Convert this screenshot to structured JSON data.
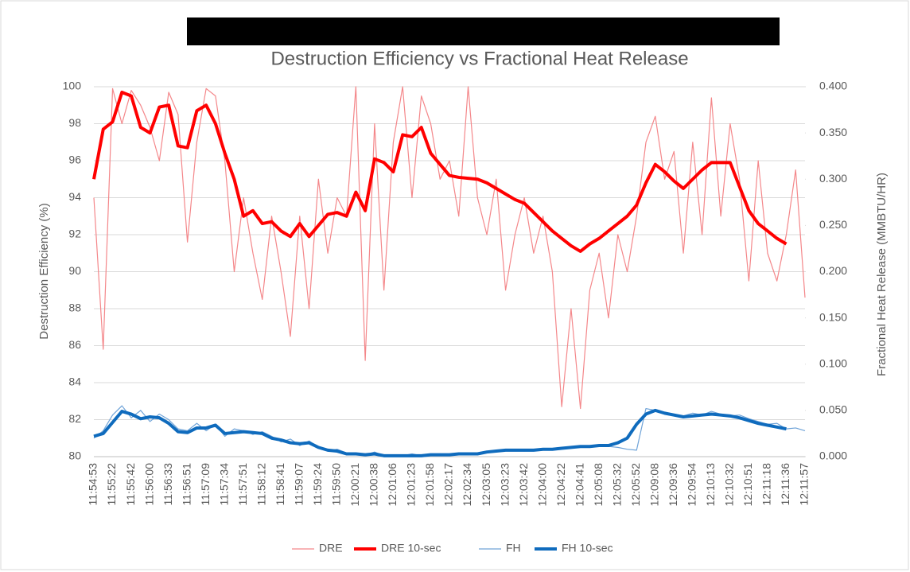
{
  "chart_data": {
    "type": "line",
    "title": "Destruction Efficiency vs Fractional Heat Release",
    "y_label": "Destruction Efficiency (%)",
    "y2_label": "Fractional Heat Release (MMBTU/HR)",
    "categories": [
      "11:54:53",
      null,
      "11:55:22",
      null,
      "11:55:42",
      null,
      "11:56:00",
      null,
      "11:56:33",
      null,
      "11:56:51",
      null,
      "11:57:09",
      null,
      "11:57:34",
      null,
      "11:57:51",
      null,
      "11:58:12",
      null,
      "11:58:41",
      null,
      "11:59:07",
      null,
      "11:59:24",
      null,
      "11:59:50",
      null,
      "12:00:21",
      null,
      "12:00:38",
      null,
      "12:01:06",
      null,
      "12:01:23",
      null,
      "12:01:58",
      null,
      "12:02:17",
      null,
      "12:02:34",
      null,
      "12:03:05",
      null,
      "12:03:23",
      null,
      "12:03:42",
      null,
      "12:04:00",
      null,
      "12:04:22",
      null,
      "12:04:41",
      null,
      "12:05:08",
      null,
      "12:05:32",
      null,
      "12:05:52",
      null,
      "12:09:08",
      null,
      "12:09:36",
      null,
      "12:09:54",
      null,
      "12:10:13",
      null,
      "12:10:32",
      null,
      "12:10:51",
      null,
      "12:11:18",
      null,
      "12:11:36",
      null,
      "12:11:57"
    ],
    "series": [
      {
        "name": "DRE",
        "color": "#f4878a",
        "width": 1.2,
        "values": [
          94,
          85.8,
          99.9,
          98,
          99.8,
          99,
          97.8,
          96,
          99.7,
          98.5,
          91.6,
          97,
          99.9,
          99.5,
          96,
          90,
          94,
          91,
          88.5,
          93,
          90,
          86.5,
          93,
          88,
          95,
          91,
          94,
          93,
          100,
          85.2,
          98,
          89,
          97,
          100,
          94,
          99.5,
          98,
          95,
          96,
          93,
          100,
          94,
          92,
          95,
          89,
          92,
          94,
          91,
          93,
          90,
          82.7,
          88,
          82.6,
          89,
          91,
          87.5,
          92,
          90,
          93,
          97,
          98.4,
          95,
          96.5,
          91,
          97,
          92,
          99.4,
          93,
          98,
          95,
          89.5,
          96,
          91,
          89.5,
          92,
          95.5,
          88.6
        ]
      },
      {
        "name": "DRE 10-sec",
        "color": "#ff0000",
        "width": 4,
        "values": [
          95,
          97.7,
          98.1,
          99.7,
          99.5,
          97.8,
          97.5,
          98.9,
          99,
          96.8,
          96.7,
          98.7,
          99,
          98,
          96.4,
          95,
          93,
          93.3,
          92.6,
          92.7,
          92.2,
          91.9,
          92.6,
          91.9,
          92.5,
          93.1,
          93.2,
          93,
          94.3,
          93.3,
          96.1,
          95.9,
          95.4,
          97.4,
          97.3,
          97.8,
          96.4,
          95.8,
          95.2,
          95.1,
          95.05,
          95,
          94.8,
          94.5,
          94.2,
          93.9,
          93.7,
          93.2,
          92.7,
          92.2,
          91.8,
          91.4,
          91.1,
          91.5,
          91.8,
          92.2,
          92.6,
          93,
          93.6,
          94.8,
          95.8,
          95.4,
          94.9,
          94.5,
          95,
          95.5,
          95.9,
          95.9,
          95.9,
          94.6,
          93.3,
          92.6,
          92.2,
          91.8,
          91.5,
          null,
          null
        ]
      },
      {
        "name": "FH",
        "color": "#6fa3d8",
        "width": 1.2,
        "axis": "y2",
        "values": [
          0.02,
          0.028,
          0.045,
          0.055,
          0.042,
          0.05,
          0.038,
          0.046,
          0.04,
          0.03,
          0.028,
          0.036,
          0.028,
          0.035,
          0.022,
          0.03,
          0.028,
          0.024,
          0.027,
          0.022,
          0.016,
          0.019,
          0.012,
          0.017,
          0.01,
          0.006,
          0.008,
          0.004,
          0.003,
          0.002,
          0.005,
          0.001,
          0.002,
          0.001,
          0.003,
          0.001,
          0.002,
          0.003,
          0.002,
          0.004,
          0.003,
          0.004,
          0.006,
          0.005,
          0.007,
          0.008,
          0.006,
          0.008,
          0.007,
          0.009,
          0.01,
          0.009,
          0.011,
          0.01,
          0.012,
          0.011,
          0.01,
          0.008,
          0.007,
          0.052,
          0.05,
          0.048,
          0.046,
          0.044,
          0.047,
          0.045,
          0.049,
          0.046,
          0.044,
          0.045,
          0.041,
          0.038,
          0.035,
          0.036,
          0.03,
          0.031,
          0.028
        ]
      },
      {
        "name": "FH 10-sec",
        "color": "#0f6bbd",
        "width": 4,
        "axis": "y2",
        "values": [
          0.022,
          0.025,
          0.037,
          0.049,
          0.046,
          0.041,
          0.043,
          0.042,
          0.036,
          0.027,
          0.026,
          0.031,
          0.031,
          0.034,
          0.025,
          0.026,
          0.027,
          0.026,
          0.025,
          0.02,
          0.018,
          0.015,
          0.014,
          0.015,
          0.01,
          0.007,
          0.006,
          0.003,
          0.003,
          0.002,
          0.003,
          0.001,
          0.001,
          0.001,
          0.001,
          0.001,
          0.002,
          0.002,
          0.002,
          0.003,
          0.003,
          0.003,
          0.005,
          0.006,
          0.007,
          0.007,
          0.007,
          0.007,
          0.008,
          0.008,
          0.009,
          0.01,
          0.011,
          0.011,
          0.012,
          0.012,
          0.015,
          0.02,
          0.035,
          0.046,
          0.05,
          0.047,
          0.045,
          0.043,
          0.044,
          0.045,
          0.046,
          0.045,
          0.044,
          0.042,
          0.039,
          0.036,
          0.034,
          0.032,
          0.03,
          null,
          null
        ]
      }
    ],
    "ylim": [
      80,
      100
    ],
    "yticks": [
      80,
      82,
      84,
      86,
      88,
      90,
      92,
      94,
      96,
      98,
      100
    ],
    "y2lim": [
      0,
      0.4
    ],
    "y2ticks": [
      {
        "value": 0,
        "label": "0.000"
      },
      {
        "value": 0.05,
        "label": "0.050"
      },
      {
        "value": 0.1,
        "label": "0.100"
      },
      {
        "value": 0.15,
        "label": "0.150"
      },
      {
        "value": 0.2,
        "label": "0.200"
      },
      {
        "value": 0.25,
        "label": "0.250"
      },
      {
        "value": 0.3,
        "label": "0.300"
      },
      {
        "value": 0.35,
        "label": "0.350"
      },
      {
        "value": 0.4,
        "label": "0.400"
      }
    ],
    "grid": true,
    "legend": "bottom"
  }
}
